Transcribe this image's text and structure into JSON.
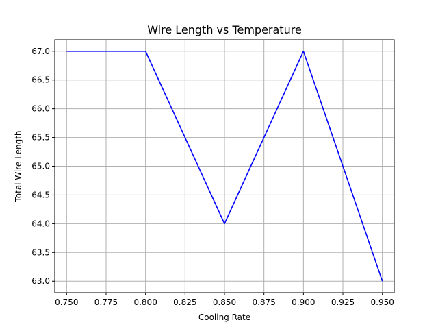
{
  "chart_data": {
    "type": "line",
    "title": "Wire Length vs Temperature",
    "xlabel": "Cooling Rate",
    "ylabel": "Total Wire Length",
    "x": [
      0.75,
      0.8,
      0.85,
      0.9,
      0.95
    ],
    "series": [
      {
        "values": [
          67.0,
          67.0,
          64.0,
          67.0,
          63.0
        ],
        "color": "#0000ff"
      }
    ],
    "xlim": [
      0.7425,
      0.9575
    ],
    "ylim": [
      62.8,
      67.2
    ],
    "xticks": [
      0.75,
      0.775,
      0.8,
      0.825,
      0.85,
      0.875,
      0.9,
      0.925,
      0.95
    ],
    "xtick_labels": [
      "0.750",
      "0.775",
      "0.800",
      "0.825",
      "0.850",
      "0.875",
      "0.900",
      "0.925",
      "0.950"
    ],
    "yticks": [
      63.0,
      63.5,
      64.0,
      64.5,
      65.0,
      65.5,
      66.0,
      66.5,
      67.0
    ],
    "ytick_labels": [
      "63.0",
      "63.5",
      "64.0",
      "64.5",
      "65.0",
      "65.5",
      "66.0",
      "66.5",
      "67.0"
    ],
    "grid": true,
    "legend": "none"
  }
}
